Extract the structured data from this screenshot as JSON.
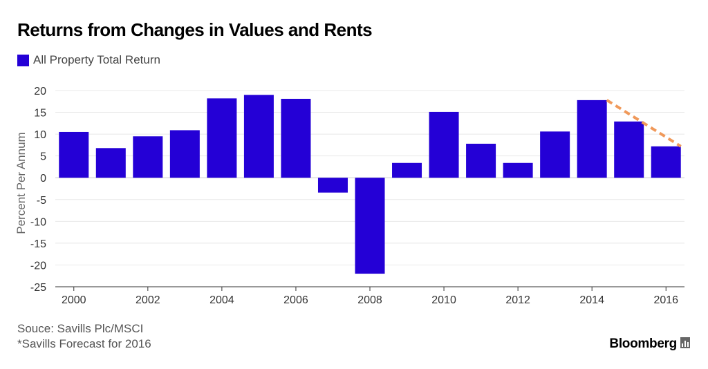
{
  "chart_data": {
    "type": "bar",
    "title": "Returns from Changes in Values and Rents",
    "legend": [
      "All Property Total Return"
    ],
    "ylabel": "Percent Per Annum",
    "xlabel": "",
    "categories": [
      "2000",
      "2001",
      "2002",
      "2003",
      "2004",
      "2005",
      "2006",
      "2007",
      "2008",
      "2009",
      "2010",
      "2011",
      "2012",
      "2013",
      "2014",
      "2015",
      "2016"
    ],
    "values": [
      10.5,
      6.8,
      9.5,
      10.9,
      18.2,
      19.0,
      18.1,
      -3.4,
      -22.0,
      3.4,
      15.1,
      7.8,
      3.4,
      10.6,
      17.8,
      12.9,
      7.2
    ],
    "ylim": [
      -25,
      20
    ],
    "yticks": [
      "20",
      "15",
      "10",
      "5",
      "0",
      "-5",
      "-10",
      "-15",
      "-20",
      "-25"
    ],
    "ytick_values": [
      20,
      15,
      10,
      5,
      0,
      -5,
      -10,
      -15,
      -20,
      -25
    ],
    "xticks": [
      "2000",
      "2002",
      "2004",
      "2006",
      "2008",
      "2010",
      "2012",
      "2014",
      "2016"
    ],
    "forecast_trend": {
      "from": "2014",
      "to": "2016",
      "start_value": 17.8,
      "end_value": 7.2
    },
    "grid": true,
    "legend_position": "top-left"
  },
  "colors": {
    "bar": "#2400d6",
    "trend": "#f0995a",
    "grid": "#e8e8e8",
    "zero_line": "#cccccc"
  },
  "footer": {
    "source": "Souce: Savills Plc/MSCI",
    "note": "*Savills Forecast for 2016",
    "brand": "Bloomberg"
  },
  "icons": {
    "brand_icon": "bar-chart-icon"
  }
}
